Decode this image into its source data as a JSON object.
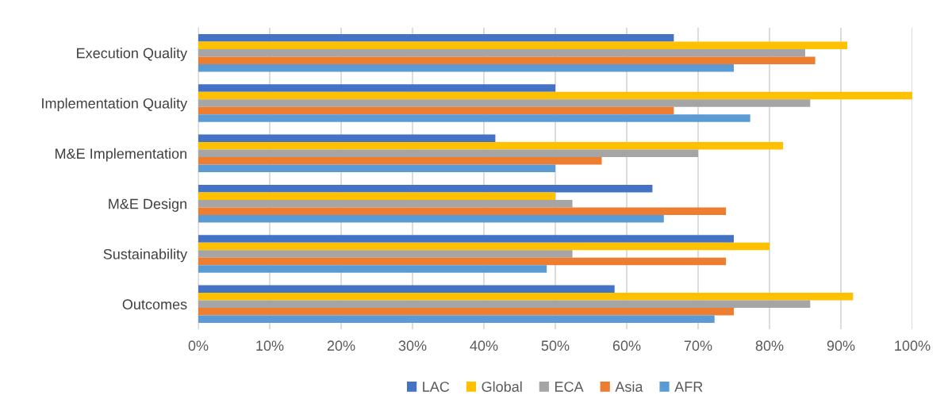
{
  "chart_data": {
    "type": "bar",
    "orientation": "horizontal",
    "categories": [
      "Execution Quality",
      "Implementation Quality",
      "M&E Implementation",
      "M&E Design",
      "Sustainability",
      "Outcomes"
    ],
    "series": [
      {
        "name": "LAC",
        "color": "#4472c4",
        "values": [
          66.6,
          50,
          41.6,
          63.6,
          75,
          58.3
        ]
      },
      {
        "name": "Global",
        "color": "#ffc000",
        "values": [
          90.9,
          100,
          81.9,
          50,
          80,
          91.7
        ]
      },
      {
        "name": "ECA",
        "color": "#a5a5a5",
        "values": [
          85,
          85.7,
          70,
          52.4,
          52.4,
          85.7
        ]
      },
      {
        "name": "Asia",
        "color": "#ed7d31",
        "values": [
          86.4,
          66.6,
          56.5,
          73.9,
          73.9,
          75
        ]
      },
      {
        "name": "AFR",
        "color": "#5b9bd5",
        "values": [
          75,
          77.3,
          50,
          65.2,
          48.8,
          72.3
        ]
      }
    ],
    "xlim": [
      0,
      100
    ],
    "xticks": [
      {
        "value": 0,
        "label": "0%"
      },
      {
        "value": 10,
        "label": "10%"
      },
      {
        "value": 20,
        "label": "20%"
      },
      {
        "value": 30,
        "label": "30%"
      },
      {
        "value": 40,
        "label": "40%"
      },
      {
        "value": 50,
        "label": "50%"
      },
      {
        "value": 60,
        "label": "60%"
      },
      {
        "value": 70,
        "label": "70%"
      },
      {
        "value": 80,
        "label": "80%"
      },
      {
        "value": 90,
        "label": "90%"
      },
      {
        "value": 100,
        "label": "100%"
      }
    ],
    "grid": "x",
    "legend": "bottom"
  }
}
